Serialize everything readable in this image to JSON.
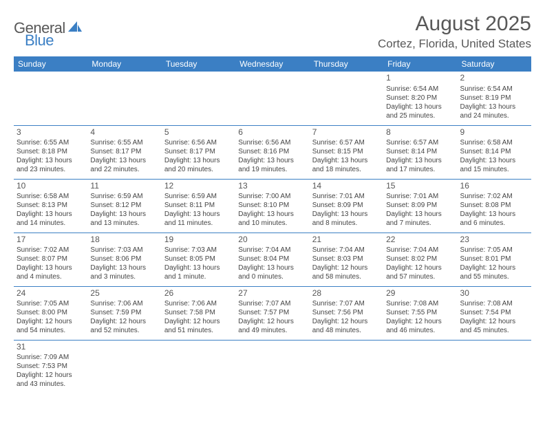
{
  "logo": {
    "textA": "General",
    "textB": "Blue"
  },
  "title": {
    "month": "August 2025",
    "location": "Cortez, Florida, United States"
  },
  "colors": {
    "header_bg": "#3b7fc4",
    "header_fg": "#ffffff",
    "border": "#3b7fc4",
    "text": "#444444",
    "title": "#585858"
  },
  "daysOfWeek": [
    "Sunday",
    "Monday",
    "Tuesday",
    "Wednesday",
    "Thursday",
    "Friday",
    "Saturday"
  ],
  "layout": {
    "first_weekday_index": 5,
    "days_in_month": 31,
    "weeks": 6
  },
  "cells": [
    {
      "day": 1,
      "sunrise": "6:54 AM",
      "sunset": "8:20 PM",
      "daylight": "13 hours and 25 minutes."
    },
    {
      "day": 2,
      "sunrise": "6:54 AM",
      "sunset": "8:19 PM",
      "daylight": "13 hours and 24 minutes."
    },
    {
      "day": 3,
      "sunrise": "6:55 AM",
      "sunset": "8:18 PM",
      "daylight": "13 hours and 23 minutes."
    },
    {
      "day": 4,
      "sunrise": "6:55 AM",
      "sunset": "8:17 PM",
      "daylight": "13 hours and 22 minutes."
    },
    {
      "day": 5,
      "sunrise": "6:56 AM",
      "sunset": "8:17 PM",
      "daylight": "13 hours and 20 minutes."
    },
    {
      "day": 6,
      "sunrise": "6:56 AM",
      "sunset": "8:16 PM",
      "daylight": "13 hours and 19 minutes."
    },
    {
      "day": 7,
      "sunrise": "6:57 AM",
      "sunset": "8:15 PM",
      "daylight": "13 hours and 18 minutes."
    },
    {
      "day": 8,
      "sunrise": "6:57 AM",
      "sunset": "8:14 PM",
      "daylight": "13 hours and 17 minutes."
    },
    {
      "day": 9,
      "sunrise": "6:58 AM",
      "sunset": "8:14 PM",
      "daylight": "13 hours and 15 minutes."
    },
    {
      "day": 10,
      "sunrise": "6:58 AM",
      "sunset": "8:13 PM",
      "daylight": "13 hours and 14 minutes."
    },
    {
      "day": 11,
      "sunrise": "6:59 AM",
      "sunset": "8:12 PM",
      "daylight": "13 hours and 13 minutes."
    },
    {
      "day": 12,
      "sunrise": "6:59 AM",
      "sunset": "8:11 PM",
      "daylight": "13 hours and 11 minutes."
    },
    {
      "day": 13,
      "sunrise": "7:00 AM",
      "sunset": "8:10 PM",
      "daylight": "13 hours and 10 minutes."
    },
    {
      "day": 14,
      "sunrise": "7:01 AM",
      "sunset": "8:09 PM",
      "daylight": "13 hours and 8 minutes."
    },
    {
      "day": 15,
      "sunrise": "7:01 AM",
      "sunset": "8:09 PM",
      "daylight": "13 hours and 7 minutes."
    },
    {
      "day": 16,
      "sunrise": "7:02 AM",
      "sunset": "8:08 PM",
      "daylight": "13 hours and 6 minutes."
    },
    {
      "day": 17,
      "sunrise": "7:02 AM",
      "sunset": "8:07 PM",
      "daylight": "13 hours and 4 minutes."
    },
    {
      "day": 18,
      "sunrise": "7:03 AM",
      "sunset": "8:06 PM",
      "daylight": "13 hours and 3 minutes."
    },
    {
      "day": 19,
      "sunrise": "7:03 AM",
      "sunset": "8:05 PM",
      "daylight": "13 hours and 1 minute."
    },
    {
      "day": 20,
      "sunrise": "7:04 AM",
      "sunset": "8:04 PM",
      "daylight": "13 hours and 0 minutes."
    },
    {
      "day": 21,
      "sunrise": "7:04 AM",
      "sunset": "8:03 PM",
      "daylight": "12 hours and 58 minutes."
    },
    {
      "day": 22,
      "sunrise": "7:04 AM",
      "sunset": "8:02 PM",
      "daylight": "12 hours and 57 minutes."
    },
    {
      "day": 23,
      "sunrise": "7:05 AM",
      "sunset": "8:01 PM",
      "daylight": "12 hours and 55 minutes."
    },
    {
      "day": 24,
      "sunrise": "7:05 AM",
      "sunset": "8:00 PM",
      "daylight": "12 hours and 54 minutes."
    },
    {
      "day": 25,
      "sunrise": "7:06 AM",
      "sunset": "7:59 PM",
      "daylight": "12 hours and 52 minutes."
    },
    {
      "day": 26,
      "sunrise": "7:06 AM",
      "sunset": "7:58 PM",
      "daylight": "12 hours and 51 minutes."
    },
    {
      "day": 27,
      "sunrise": "7:07 AM",
      "sunset": "7:57 PM",
      "daylight": "12 hours and 49 minutes."
    },
    {
      "day": 28,
      "sunrise": "7:07 AM",
      "sunset": "7:56 PM",
      "daylight": "12 hours and 48 minutes."
    },
    {
      "day": 29,
      "sunrise": "7:08 AM",
      "sunset": "7:55 PM",
      "daylight": "12 hours and 46 minutes."
    },
    {
      "day": 30,
      "sunrise": "7:08 AM",
      "sunset": "7:54 PM",
      "daylight": "12 hours and 45 minutes."
    },
    {
      "day": 31,
      "sunrise": "7:09 AM",
      "sunset": "7:53 PM",
      "daylight": "12 hours and 43 minutes."
    }
  ],
  "labels": {
    "sunrise": "Sunrise:",
    "sunset": "Sunset:",
    "daylight": "Daylight:"
  }
}
